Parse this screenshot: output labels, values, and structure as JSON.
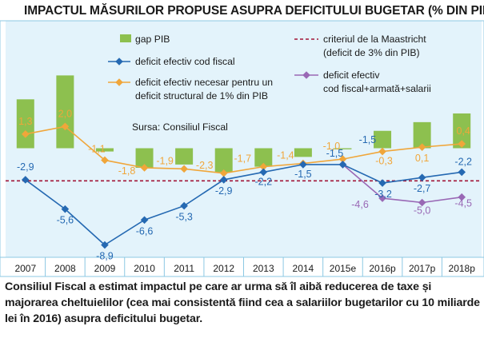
{
  "title": "IMPACTUL MĂSURILOR PROPUSE ASUPRA DEFICITULUI BUGETAR (% DIN PIB)",
  "caption": "Consiliul Fiscal a estimat impactul pe care ar urma să îl aibă reducerea de taxe și majorarea cheltuielilor (cea mai consistentă fiind cea a salariilor bugetarilor cu 10 miliarde lei în 2016) asupra deficitului bugetar.",
  "source": "Sursa: Consiliul Fiscal",
  "colors": {
    "panel_bg": "#e3f3fb",
    "frame": "#8cc8e3",
    "bars": "#8dc04f",
    "blue": "#2569b2",
    "orange": "#f0a63a",
    "purple": "#9968b5",
    "maastricht": "#a21437"
  },
  "legend": [
    {
      "key": "gap",
      "label": "gap PIB",
      "swatch": "bar"
    },
    {
      "key": "blue",
      "label": "deficit efectiv cod fiscal",
      "swatch": "line"
    },
    {
      "key": "orange",
      "label": "deficit efectiv necesar pentru un",
      "label2": "deficit structural de 1% din PIB",
      "swatch": "line"
    },
    {
      "key": "maastricht",
      "label": "criteriul de la Maastricht",
      "label2": "(deficit de 3% din PIB)",
      "swatch": "dashed"
    },
    {
      "key": "purple",
      "label": "deficit efectiv",
      "label2": "cod fiscal+armată+salarii",
      "swatch": "line"
    }
  ],
  "chart_data": {
    "type": "bar+line",
    "categories": [
      "2007",
      "2008",
      "2009",
      "2010",
      "2011",
      "2012",
      "2013",
      "2014",
      "2015e",
      "2016p",
      "2017p",
      "2018p"
    ],
    "series": [
      {
        "name": "gap PIB",
        "type": "bar",
        "values": [
          4.5,
          6.7,
          -0.3,
          -1.8,
          -1.5,
          -2.2,
          -1.7,
          -0.8,
          -0.1,
          1.6,
          2.4,
          3.2
        ]
      },
      {
        "name": "deficit efectiv cod fiscal",
        "type": "line",
        "values": [
          -2.9,
          -5.6,
          -8.9,
          -6.6,
          -5.3,
          -2.9,
          -2.2,
          -1.5,
          -1.5,
          -3.2,
          -2.7,
          -2.2
        ]
      },
      {
        "name": "deficit efectiv necesar pentru un deficit structural de 1% din PIB",
        "type": "line",
        "values": [
          1.3,
          2.0,
          -1.1,
          -1.8,
          -1.9,
          -2.3,
          -1.7,
          -1.4,
          -1.0,
          -0.3,
          0.1,
          0.4
        ]
      },
      {
        "name": "deficit efectiv cod fiscal+armată+salarii",
        "type": "line",
        "values": [
          null,
          null,
          null,
          null,
          null,
          null,
          null,
          null,
          -1.5,
          -4.6,
          -5.0,
          -4.5
        ]
      },
      {
        "name": "criteriul de la Maastricht",
        "type": "reference",
        "value": -3.0
      }
    ],
    "labels": {
      "blue": [
        "-2,9",
        "-5,6",
        "-8,9",
        "-6,6",
        "-5,3",
        "-2,9",
        "-2,2",
        "-1,5",
        "-1,5",
        "-3,2",
        "-2,7",
        "-2,2"
      ],
      "orange": [
        "1,3",
        "2,0",
        "-1,1",
        "-1,8",
        "-1,9",
        "-2,3",
        "-1,7",
        "-1,4",
        "-1,0",
        "-0,3",
        "0,1",
        "0,4"
      ],
      "purple": [
        "",
        "",
        "",
        "",
        "",
        "",
        "",
        "",
        "",
        "-4,6",
        "-5,0",
        "-4,5"
      ],
      "extra": "-1,5"
    },
    "ylim": [
      -10,
      7.4
    ],
    "grid": false
  }
}
